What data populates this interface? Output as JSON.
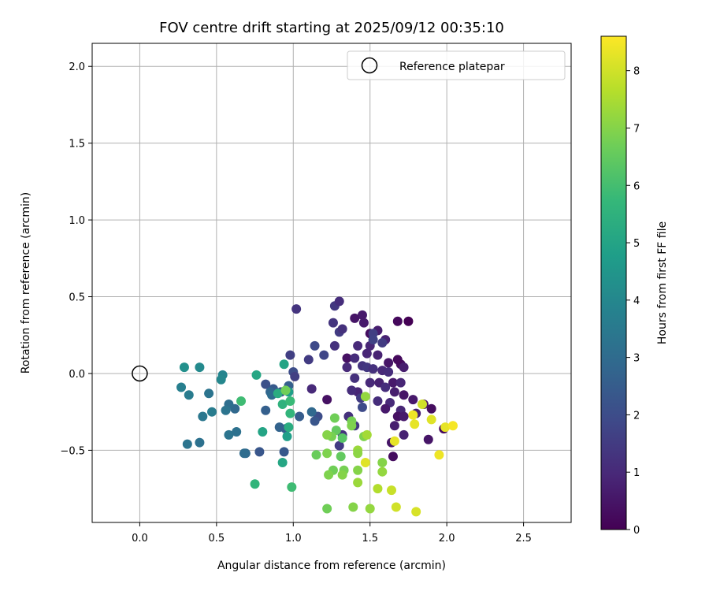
{
  "chart_data": {
    "type": "scatter",
    "title": "FOV centre drift starting at 2025/09/12 00:35:10",
    "xlabel": "Angular distance from reference (arcmin)",
    "ylabel": "Rotation from reference (arcmin)",
    "xlim": [
      -0.31,
      2.81
    ],
    "ylim": [
      -0.97,
      2.15
    ],
    "xticks": [
      0.0,
      0.5,
      1.0,
      1.5,
      2.0,
      2.5
    ],
    "xtick_labels": [
      "0.0",
      "0.5",
      "1.0",
      "1.5",
      "2.0",
      "2.5"
    ],
    "yticks": [
      -0.5,
      0.0,
      0.5,
      1.0,
      1.5,
      2.0
    ],
    "ytick_labels": [
      "−0.5",
      "0.0",
      "0.5",
      "1.0",
      "1.5",
      "2.0"
    ],
    "grid": true,
    "legend": {
      "label": "Reference platepar",
      "placement": "top-right"
    },
    "reference_point": {
      "x": 0.0,
      "y": 0.0
    },
    "colorbar": {
      "label": "Hours from first FF file",
      "range": [
        0,
        8.6
      ],
      "ticks": [
        0,
        1,
        2,
        3,
        4,
        5,
        6,
        7,
        8
      ],
      "tick_labels": [
        "0",
        "1",
        "2",
        "3",
        "4",
        "5",
        "6",
        "7",
        "8"
      ],
      "colormap": "viridis",
      "stops": [
        "#440154",
        "#482878",
        "#3e4a89",
        "#31688e",
        "#26828e",
        "#1f9e89",
        "#35b779",
        "#6ece58",
        "#b5de2b",
        "#fde725"
      ]
    },
    "points": [
      [
        1.75,
        0.34,
        0.0
      ],
      [
        1.68,
        0.34,
        0.2
      ],
      [
        1.5,
        0.26,
        0.3
      ],
      [
        1.45,
        0.38,
        0.6
      ],
      [
        1.35,
        0.1,
        0.4
      ],
      [
        1.4,
        0.36,
        0.5
      ],
      [
        1.55,
        0.28,
        0.7
      ],
      [
        1.6,
        0.22,
        0.8
      ],
      [
        1.5,
        0.18,
        0.9
      ],
      [
        1.42,
        0.18,
        1.0
      ],
      [
        1.48,
        0.13,
        0.9
      ],
      [
        1.55,
        0.12,
        0.8
      ],
      [
        1.62,
        0.07,
        0.5
      ],
      [
        1.7,
        0.06,
        0.3
      ],
      [
        1.68,
        0.09,
        0.2
      ],
      [
        1.4,
        0.1,
        1.1
      ],
      [
        1.45,
        0.05,
        1.3
      ],
      [
        1.48,
        0.04,
        1.4
      ],
      [
        1.52,
        0.03,
        1.2
      ],
      [
        1.58,
        0.02,
        1.0
      ],
      [
        1.62,
        0.01,
        1.1
      ],
      [
        1.72,
        0.04,
        0.7
      ],
      [
        1.35,
        0.04,
        1.0
      ],
      [
        1.3,
        0.27,
        1.5
      ],
      [
        1.32,
        0.29,
        1.2
      ],
      [
        1.26,
        0.33,
        1.3
      ],
      [
        1.27,
        0.44,
        1.4
      ],
      [
        1.3,
        0.47,
        1.1
      ],
      [
        1.46,
        0.33,
        0.6
      ],
      [
        1.52,
        0.26,
        1.6
      ],
      [
        1.52,
        0.22,
        1.7
      ],
      [
        1.58,
        0.2,
        1.5
      ],
      [
        1.2,
        0.12,
        1.8
      ],
      [
        1.14,
        0.18,
        1.9
      ],
      [
        1.1,
        0.09,
        1.5
      ],
      [
        1.02,
        0.42,
        1.3
      ],
      [
        0.98,
        0.12,
        1.6
      ],
      [
        1.0,
        0.01,
        2.0
      ],
      [
        1.01,
        -0.02,
        1.6
      ],
      [
        1.27,
        0.18,
        1.2
      ],
      [
        1.4,
        -0.03,
        1.2
      ],
      [
        1.5,
        -0.06,
        1.0
      ],
      [
        1.56,
        -0.06,
        0.8
      ],
      [
        1.65,
        -0.06,
        0.6
      ],
      [
        1.7,
        -0.06,
        0.9
      ],
      [
        1.6,
        -0.09,
        1.1
      ],
      [
        1.66,
        -0.12,
        0.7
      ],
      [
        1.72,
        -0.14,
        0.5
      ],
      [
        1.78,
        -0.17,
        0.6
      ],
      [
        1.85,
        -0.2,
        0.4
      ],
      [
        1.9,
        -0.23,
        0.3
      ],
      [
        1.8,
        -0.26,
        0.8
      ],
      [
        1.7,
        -0.24,
        0.9
      ],
      [
        1.63,
        -0.19,
        1.0
      ],
      [
        1.55,
        -0.18,
        1.1
      ],
      [
        1.6,
        -0.23,
        0.6
      ],
      [
        1.68,
        -0.28,
        0.4
      ],
      [
        1.72,
        -0.28,
        0.6
      ],
      [
        1.66,
        -0.34,
        0.7
      ],
      [
        1.72,
        -0.4,
        0.8
      ],
      [
        1.64,
        -0.45,
        0.5
      ],
      [
        1.65,
        -0.54,
        0.3
      ],
      [
        1.88,
        -0.43,
        0.5
      ],
      [
        1.98,
        -0.36,
        0.2
      ],
      [
        1.42,
        -0.12,
        0.9
      ],
      [
        1.38,
        -0.11,
        1.1
      ],
      [
        1.44,
        -0.16,
        1.5
      ],
      [
        1.45,
        -0.22,
        1.9
      ],
      [
        1.36,
        -0.28,
        1.2
      ],
      [
        1.4,
        -0.34,
        1.4
      ],
      [
        1.32,
        -0.4,
        1.3
      ],
      [
        1.3,
        -0.47,
        1.5
      ],
      [
        1.22,
        -0.17,
        0.4
      ],
      [
        1.12,
        -0.1,
        1.0
      ],
      [
        1.16,
        -0.28,
        2.0
      ],
      [
        1.14,
        -0.31,
        2.3
      ],
      [
        1.12,
        -0.25,
        2.9
      ],
      [
        1.04,
        -0.28,
        2.5
      ],
      [
        0.97,
        -0.08,
        2.6
      ],
      [
        0.92,
        -0.12,
        2.2
      ],
      [
        0.87,
        -0.1,
        2.4
      ],
      [
        0.82,
        -0.07,
        2.1
      ],
      [
        0.85,
        -0.12,
        2.8
      ],
      [
        0.86,
        -0.14,
        3.0
      ],
      [
        0.82,
        -0.24,
        2.6
      ],
      [
        0.91,
        -0.35,
        2.7
      ],
      [
        0.95,
        -0.36,
        2.6
      ],
      [
        0.94,
        -0.51,
        2.4
      ],
      [
        0.78,
        -0.51,
        2.3
      ],
      [
        0.69,
        -0.52,
        2.9
      ],
      [
        0.62,
        -0.23,
        2.9
      ],
      [
        0.58,
        -0.2,
        3.1
      ],
      [
        0.56,
        -0.24,
        3.3
      ],
      [
        0.58,
        -0.4,
        3.3
      ],
      [
        0.63,
        -0.38,
        3.2
      ],
      [
        0.68,
        -0.52,
        3.0
      ],
      [
        0.54,
        -0.01,
        3.9
      ],
      [
        0.53,
        -0.04,
        4.0
      ],
      [
        0.47,
        -0.25,
        3.6
      ],
      [
        0.41,
        -0.28,
        3.4
      ],
      [
        0.39,
        -0.45,
        3.2
      ],
      [
        0.32,
        -0.14,
        3.6
      ],
      [
        0.27,
        -0.09,
        3.7
      ],
      [
        0.31,
        -0.46,
        3.3
      ],
      [
        0.45,
        -0.13,
        3.3
      ],
      [
        0.29,
        0.04,
        4.3
      ],
      [
        0.39,
        0.04,
        4.1
      ],
      [
        0.76,
        -0.01,
        5.1
      ],
      [
        0.94,
        0.06,
        5.0
      ],
      [
        0.97,
        -0.12,
        4.8
      ],
      [
        0.9,
        -0.13,
        5.3
      ],
      [
        0.93,
        -0.2,
        5.5
      ],
      [
        0.98,
        -0.18,
        5.8
      ],
      [
        0.98,
        -0.26,
        5.6
      ],
      [
        0.97,
        -0.35,
        5.3
      ],
      [
        0.96,
        -0.41,
        4.8
      ],
      [
        0.8,
        -0.38,
        5.0
      ],
      [
        0.93,
        -0.58,
        5.1
      ],
      [
        0.75,
        -0.72,
        5.6
      ],
      [
        0.99,
        -0.74,
        5.9
      ],
      [
        0.66,
        -0.18,
        5.9
      ],
      [
        0.95,
        -0.11,
        6.7
      ],
      [
        1.27,
        -0.29,
        6.7
      ],
      [
        1.28,
        -0.37,
        6.5
      ],
      [
        1.32,
        -0.42,
        6.3
      ],
      [
        1.25,
        -0.41,
        6.8
      ],
      [
        1.22,
        -0.4,
        7.0
      ],
      [
        1.15,
        -0.53,
        6.6
      ],
      [
        1.22,
        -0.52,
        6.9
      ],
      [
        1.31,
        -0.54,
        6.5
      ],
      [
        1.38,
        -0.31,
        6.8
      ],
      [
        1.38,
        -0.34,
        6.9
      ],
      [
        1.42,
        -0.5,
        7.3
      ],
      [
        1.42,
        -0.52,
        7.1
      ],
      [
        1.46,
        -0.41,
        6.9
      ],
      [
        1.42,
        -0.63,
        7.0
      ],
      [
        1.33,
        -0.63,
        6.8
      ],
      [
        1.26,
        -0.63,
        6.7
      ],
      [
        1.23,
        -0.66,
        6.9
      ],
      [
        1.32,
        -0.66,
        7.0
      ],
      [
        1.42,
        -0.71,
        7.3
      ],
      [
        1.48,
        -0.4,
        7.4
      ],
      [
        1.47,
        -0.15,
        7.2
      ],
      [
        1.22,
        -0.88,
        6.7
      ],
      [
        1.39,
        -0.87,
        7.0
      ],
      [
        1.5,
        -0.88,
        7.2
      ],
      [
        1.55,
        -0.75,
        7.6
      ],
      [
        1.58,
        -0.58,
        7.0
      ],
      [
        1.58,
        -0.64,
        7.2
      ],
      [
        1.64,
        -0.76,
        7.9
      ],
      [
        1.67,
        -0.87,
        8.0
      ],
      [
        1.66,
        -0.44,
        8.3
      ],
      [
        1.47,
        -0.58,
        8.2
      ],
      [
        1.78,
        -0.27,
        8.4
      ],
      [
        1.79,
        -0.33,
        8.3
      ],
      [
        1.84,
        -0.2,
        8.0
      ],
      [
        1.9,
        -0.3,
        8.2
      ],
      [
        1.95,
        -0.53,
        8.4
      ],
      [
        1.99,
        -0.35,
        8.3
      ],
      [
        2.04,
        -0.34,
        8.5
      ],
      [
        1.8,
        -0.9,
        8.1
      ]
    ]
  }
}
